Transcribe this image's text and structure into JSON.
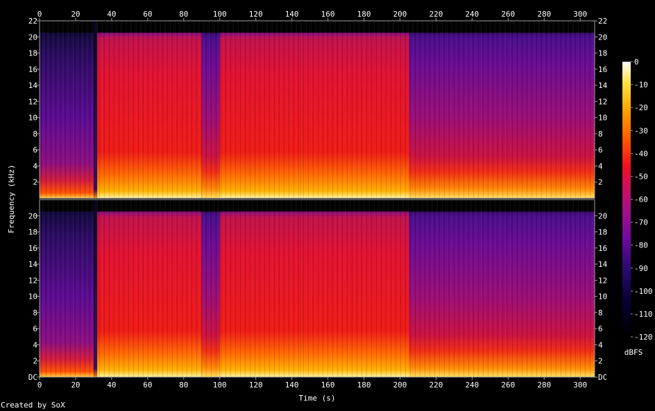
{
  "chart_data": {
    "type": "heatmap",
    "title": "",
    "xlabel": "Time (s)",
    "ylabel": "Frequency (kHz)",
    "x_ticks": [
      "0",
      "20",
      "40",
      "60",
      "80",
      "100",
      "120",
      "140",
      "160",
      "180",
      "200",
      "220",
      "240",
      "260",
      "280",
      "300"
    ],
    "xlim": [
      0,
      308
    ],
    "channels": [
      {
        "y_ticks": [
          "2",
          "4",
          "6",
          "8",
          "10",
          "12",
          "14",
          "16",
          "18",
          "20",
          "22"
        ],
        "ylim": [
          0,
          22
        ]
      },
      {
        "y_ticks": [
          "DC",
          "2",
          "4",
          "6",
          "8",
          "10",
          "12",
          "14",
          "16",
          "18",
          "20"
        ],
        "ylim": [
          0,
          22
        ]
      }
    ],
    "colorbar": {
      "label": "dBFS",
      "ticks": [
        "0",
        "-10",
        "-20",
        "-30",
        "-40",
        "-50",
        "-60",
        "-70",
        "-80",
        "-90",
        "-100",
        "-110",
        "-120"
      ],
      "range": [
        -120,
        0
      ]
    },
    "cutoff_khz": 20,
    "segments": [
      {
        "start": 0,
        "end": 30,
        "level": "quiet"
      },
      {
        "start": 30,
        "end": 32,
        "level": "gap"
      },
      {
        "start": 32,
        "end": 90,
        "level": "loud"
      },
      {
        "start": 90,
        "end": 100,
        "level": "medium"
      },
      {
        "start": 100,
        "end": 145,
        "level": "loud"
      },
      {
        "start": 145,
        "end": 205,
        "level": "loud"
      },
      {
        "start": 205,
        "end": 308,
        "level": "medium"
      }
    ],
    "colors": {
      "background": "#000000",
      "frame": "#a0a0a0"
    }
  },
  "footer": {
    "credit": "Created by SoX"
  }
}
